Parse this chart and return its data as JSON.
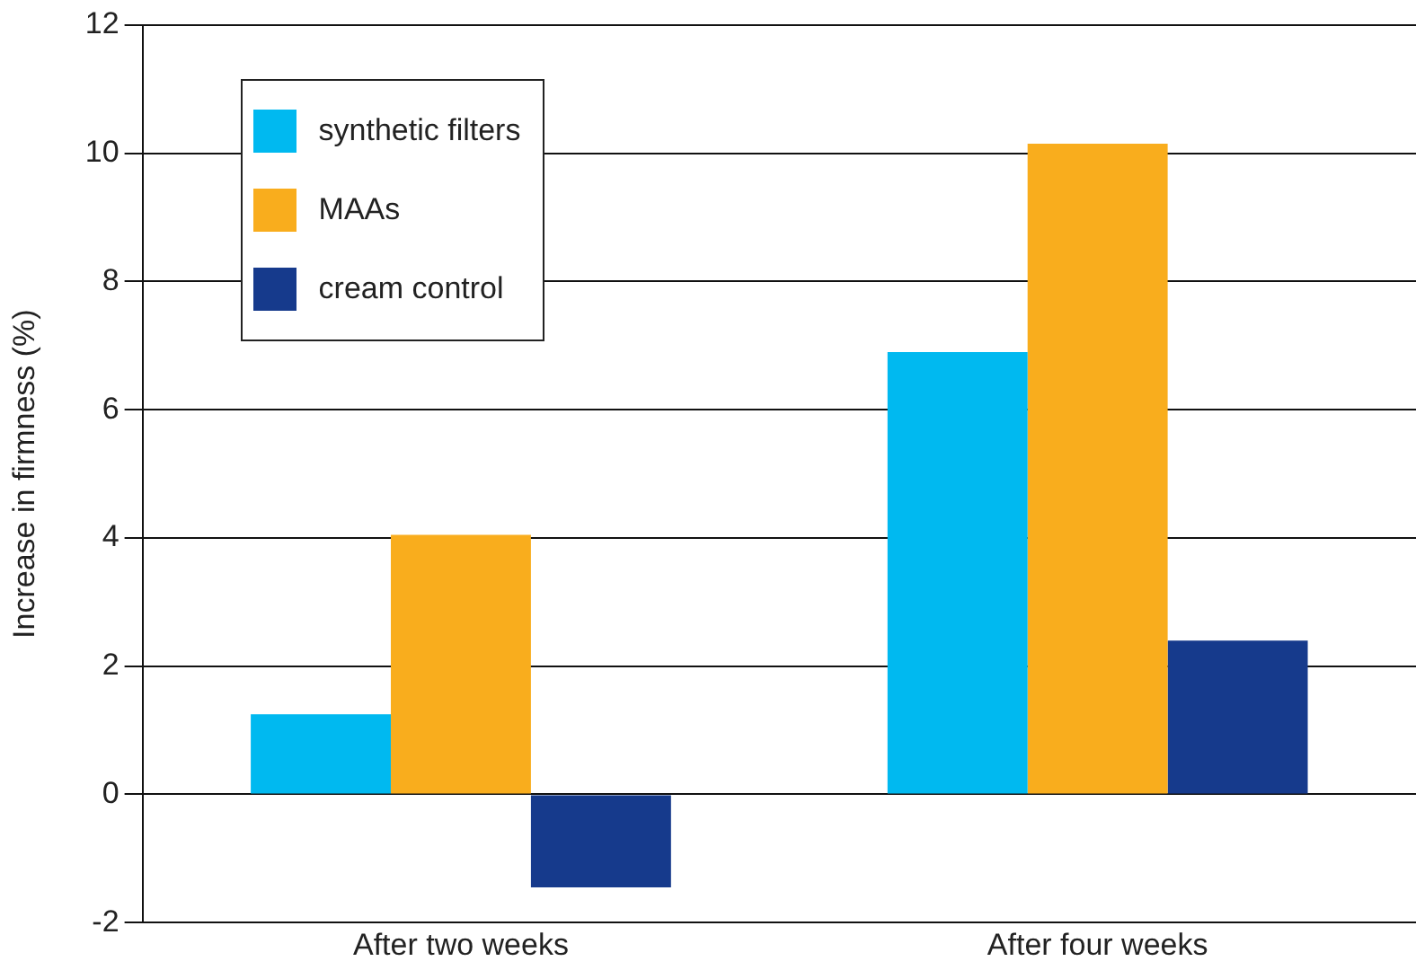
{
  "chart_data": {
    "type": "bar",
    "ylabel": "Increase in firmness (%)",
    "categories": [
      "After two weeks",
      "After four weeks"
    ],
    "series": [
      {
        "name": "synthetic filters",
        "color": "#00b9f0",
        "values": [
          1.25,
          6.9
        ]
      },
      {
        "name": "MAAs",
        "color": "#f9ad1d",
        "values": [
          4.05,
          10.15
        ]
      },
      {
        "name": "cream control",
        "color": "#163a8c",
        "values": [
          -1.45,
          2.4
        ]
      }
    ],
    "ylim": [
      -2,
      12
    ],
    "yticks": [
      -2,
      0,
      2,
      4,
      6,
      8,
      10,
      12
    ],
    "grid": "y",
    "legend": "top left"
  }
}
